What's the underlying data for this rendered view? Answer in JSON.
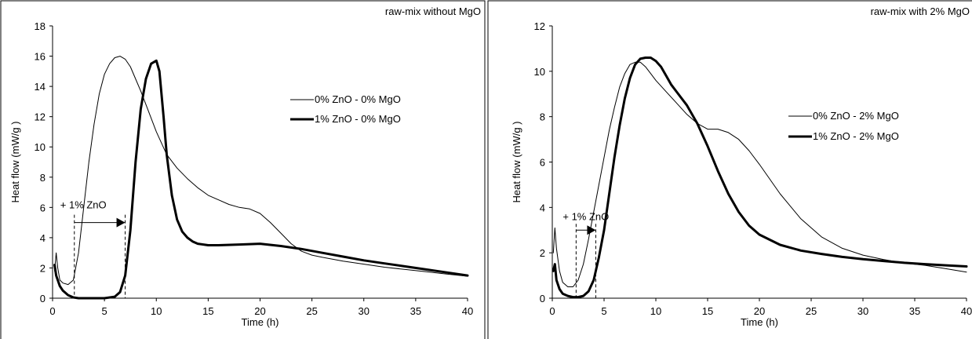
{
  "chart_data": [
    {
      "type": "line",
      "annotation": "raw-mix without MgO",
      "xlabel": "Time (h)",
      "ylabel": "Heat flow (mW/g )",
      "xlim": [
        0,
        40
      ],
      "ylim": [
        0,
        18
      ],
      "xticks": [
        0,
        5,
        10,
        15,
        20,
        25,
        30,
        35,
        40
      ],
      "yticks": [
        0,
        2,
        4,
        6,
        8,
        10,
        12,
        14,
        16,
        18
      ],
      "grid": false,
      "legend_position": "center-right",
      "shift_label": "+ 1% ZnO",
      "shift_from": 2.1,
      "shift_to": 7.0,
      "series": [
        {
          "name": "0% ZnO - 0% MgO",
          "style": "thin",
          "x": [
            0.2,
            0.35,
            0.5,
            0.7,
            1.0,
            1.5,
            2.0,
            2.5,
            3.0,
            3.5,
            4.0,
            4.5,
            5.0,
            5.5,
            6.0,
            6.5,
            7.0,
            7.5,
            8.0,
            8.5,
            9.0,
            10.0,
            11.0,
            12.0,
            13.0,
            14.0,
            15.0,
            16.0,
            17.0,
            18.0,
            19.0,
            20.0,
            21.0,
            22.0,
            23.0,
            24.0,
            25.0,
            26.0,
            28.0,
            30.0,
            32.0,
            34.0,
            36.0,
            38.0,
            40.0
          ],
          "y": [
            1.8,
            3.0,
            2.0,
            1.2,
            1.0,
            0.9,
            1.2,
            3.0,
            6.0,
            9.0,
            11.5,
            13.5,
            14.8,
            15.5,
            15.9,
            16.0,
            15.8,
            15.3,
            14.5,
            13.7,
            12.8,
            11.0,
            9.5,
            8.6,
            7.9,
            7.3,
            6.8,
            6.5,
            6.2,
            6.0,
            5.9,
            5.6,
            5.0,
            4.3,
            3.6,
            3.1,
            2.85,
            2.7,
            2.45,
            2.25,
            2.05,
            1.9,
            1.75,
            1.6,
            1.45
          ]
        },
        {
          "name": "1% ZnO - 0% MgO",
          "style": "bold",
          "x": [
            0.2,
            0.35,
            0.5,
            0.7,
            1.0,
            1.5,
            2.0,
            2.5,
            3.0,
            4.0,
            5.0,
            6.0,
            6.5,
            7.0,
            7.5,
            8.0,
            8.5,
            9.0,
            9.5,
            10.0,
            10.3,
            10.7,
            11.0,
            11.5,
            12.0,
            12.5,
            13.0,
            13.5,
            14.0,
            15.0,
            16.0,
            18.0,
            20.0,
            22.0,
            24.0,
            26.0,
            28.0,
            30.0,
            32.0,
            34.0,
            36.0,
            38.0,
            40.0
          ],
          "y": [
            2.2,
            1.5,
            1.2,
            0.8,
            0.5,
            0.2,
            0.05,
            0.0,
            0.0,
            0.0,
            0.0,
            0.1,
            0.4,
            1.5,
            4.5,
            9.0,
            12.5,
            14.5,
            15.5,
            15.7,
            15.0,
            12.0,
            9.5,
            6.8,
            5.2,
            4.4,
            4.0,
            3.75,
            3.6,
            3.5,
            3.5,
            3.55,
            3.6,
            3.45,
            3.25,
            3.0,
            2.75,
            2.5,
            2.3,
            2.1,
            1.9,
            1.7,
            1.5
          ]
        }
      ]
    },
    {
      "type": "line",
      "annotation": "raw-mix with 2% MgO",
      "xlabel": "Time (h)",
      "ylabel": "Heat flow (mW/g )",
      "xlim": [
        0,
        40
      ],
      "ylim": [
        0,
        12
      ],
      "xticks": [
        0,
        5,
        10,
        15,
        20,
        25,
        30,
        35,
        40
      ],
      "yticks": [
        0,
        2,
        4,
        6,
        8,
        10,
        12
      ],
      "grid": false,
      "legend_position": "center-right",
      "shift_label": "+ 1% ZnO",
      "shift_from": 2.3,
      "shift_to": 4.2,
      "series": [
        {
          "name": "0% ZnO - 2% MgO",
          "style": "thin",
          "x": [
            0.1,
            0.25,
            0.4,
            0.7,
            1.0,
            1.5,
            2.0,
            2.5,
            3.0,
            3.5,
            4.0,
            4.5,
            5.0,
            5.5,
            6.0,
            6.5,
            7.0,
            7.5,
            8.0,
            8.5,
            9.0,
            9.5,
            10.0,
            11.0,
            12.0,
            13.0,
            14.0,
            15.0,
            16.0,
            17.0,
            18.0,
            19.0,
            20.0,
            22.0,
            24.0,
            26.0,
            28.0,
            30.0,
            32.0,
            34.0,
            36.0,
            38.0,
            40.0
          ],
          "y": [
            2.0,
            3.1,
            2.2,
            1.2,
            0.7,
            0.5,
            0.5,
            0.8,
            1.5,
            2.6,
            3.8,
            5.0,
            6.2,
            7.4,
            8.4,
            9.3,
            9.9,
            10.3,
            10.4,
            10.4,
            10.2,
            9.9,
            9.6,
            9.1,
            8.6,
            8.1,
            7.7,
            7.45,
            7.45,
            7.3,
            7.0,
            6.5,
            5.9,
            4.6,
            3.5,
            2.7,
            2.2,
            1.9,
            1.7,
            1.55,
            1.45,
            1.3,
            1.15
          ]
        },
        {
          "name": "1% ZnO - 2% MgO",
          "style": "bold",
          "x": [
            0.1,
            0.25,
            0.4,
            0.7,
            1.0,
            1.5,
            2.0,
            2.5,
            3.0,
            3.5,
            4.0,
            4.5,
            5.0,
            5.5,
            6.0,
            6.5,
            7.0,
            7.5,
            8.0,
            8.5,
            9.0,
            9.5,
            10.0,
            10.5,
            11.0,
            11.5,
            12.0,
            13.0,
            14.0,
            15.0,
            16.0,
            17.0,
            18.0,
            19.0,
            20.0,
            22.0,
            24.0,
            26.0,
            28.0,
            30.0,
            32.0,
            34.0,
            36.0,
            38.0,
            40.0
          ],
          "y": [
            1.2,
            1.5,
            0.8,
            0.4,
            0.2,
            0.1,
            0.05,
            0.05,
            0.1,
            0.3,
            0.8,
            1.8,
            3.0,
            4.6,
            6.2,
            7.6,
            8.8,
            9.7,
            10.3,
            10.55,
            10.6,
            10.6,
            10.45,
            10.2,
            9.8,
            9.4,
            9.1,
            8.5,
            7.7,
            6.7,
            5.6,
            4.6,
            3.8,
            3.2,
            2.8,
            2.35,
            2.1,
            1.95,
            1.82,
            1.72,
            1.64,
            1.56,
            1.5,
            1.45,
            1.4
          ]
        }
      ]
    }
  ]
}
